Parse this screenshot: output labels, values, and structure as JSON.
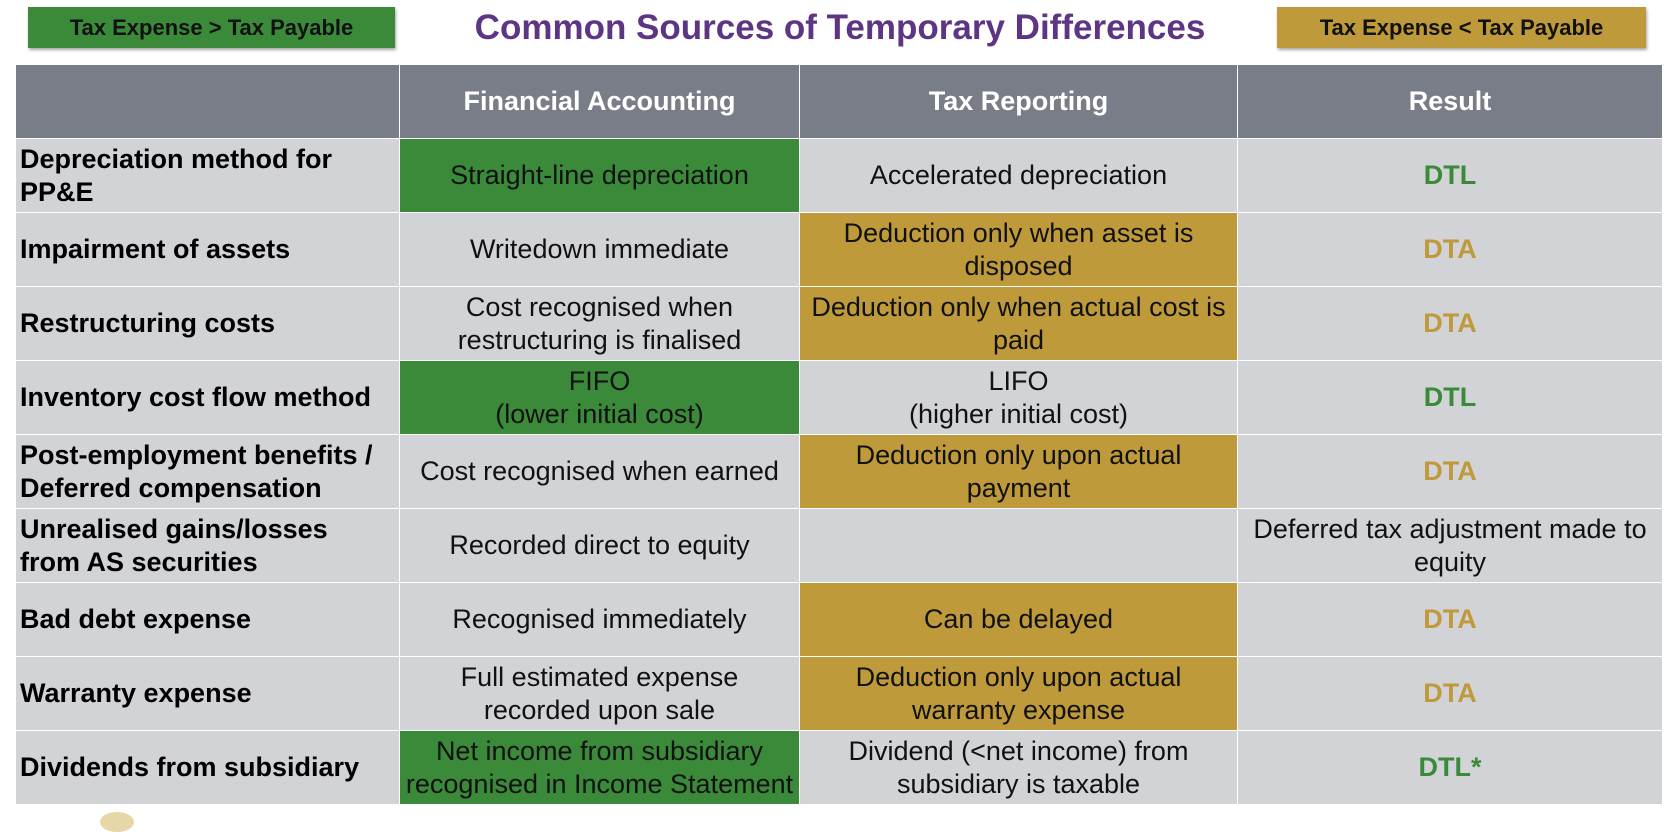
{
  "legend": {
    "left": "Tax Expense > Tax Payable",
    "right": "Tax Expense < Tax Payable"
  },
  "title": "Common Sources of Temporary Differences",
  "colors": {
    "green": "#3a8a3a",
    "gold": "#bf9a3a",
    "header": "#787d87",
    "cell": "#d2d3d7",
    "title": "#5e3582"
  },
  "table": {
    "headers": [
      "",
      "Financial Accounting",
      "Tax Reporting",
      "Result"
    ],
    "rows": [
      {
        "item": "Depreciation method for PP&E",
        "fin": "Straight-line depreciation",
        "tax": "Accelerated depreciation",
        "result": "DTL"
      },
      {
        "item": "Impairment of assets",
        "fin": "Writedown immediate",
        "tax": "Deduction only when asset is disposed",
        "result": "DTA"
      },
      {
        "item": "Restructuring costs",
        "fin": "Cost recognised when restructuring is finalised",
        "tax": "Deduction only when actual cost is paid",
        "result": "DTA"
      },
      {
        "item": "Inventory cost flow method",
        "fin": "FIFO\n(lower initial cost)",
        "tax": "LIFO\n(higher initial cost)",
        "result": "DTL"
      },
      {
        "item": "Post-employment benefits / Deferred compensation",
        "fin": "Cost recognised when earned",
        "tax": "Deduction only upon actual payment",
        "result": "DTA"
      },
      {
        "item": "Unrealised gains/losses from AS securities",
        "fin": "Recorded direct to equity",
        "tax": "",
        "result": "Deferred tax adjustment made to equity"
      },
      {
        "item": "Bad debt expense",
        "fin": "Recognised immediately",
        "tax": "Can be delayed",
        "result": "DTA"
      },
      {
        "item": "Warranty expense",
        "fin": "Full estimated expense recorded upon sale",
        "tax": "Deduction only upon actual warranty expense",
        "result": "DTA"
      },
      {
        "item": "Dividends from subsidiary",
        "fin": "Net income from subsidiary recognised in Income Statement",
        "tax": "Dividend (<net income) from subsidiary is taxable",
        "result": "DTL*"
      }
    ]
  }
}
